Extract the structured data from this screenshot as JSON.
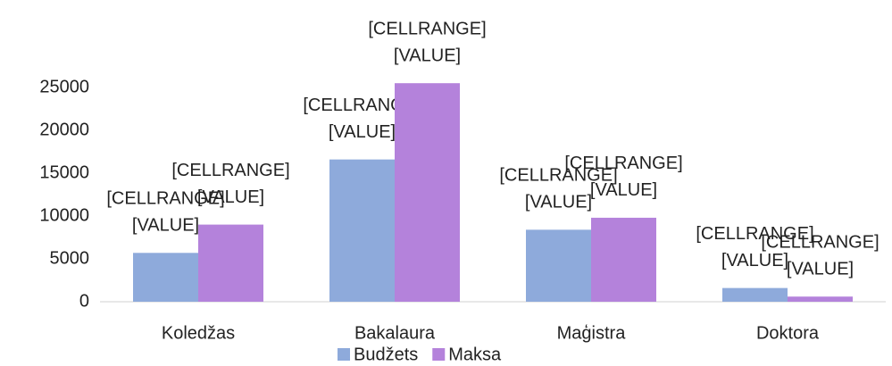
{
  "chart_data": {
    "type": "bar",
    "categories": [
      "Koledžas",
      "Bakalaura",
      "Maģistra",
      "Doktora"
    ],
    "series": [
      {
        "name": "Budžets",
        "color": "#8eaadb",
        "values": [
          5700,
          16600,
          8400,
          1600
        ],
        "value_labels": [
          [
            "[CELLRANGE]",
            "[VALUE]"
          ],
          [
            "[CELLRANGE]",
            "[VALUE]"
          ],
          [
            "[CELLRANGE]",
            "[VALUE]"
          ],
          [
            "[CELLRANGE]",
            "[VALUE]"
          ]
        ]
      },
      {
        "name": "Maksa",
        "color": "#b482db",
        "values": [
          9000,
          25500,
          9800,
          600
        ],
        "value_labels": [
          [
            "[CELLRANGE]",
            "[VALUE]"
          ],
          [
            "[CELLRANGE]",
            "[VALUE]"
          ],
          [
            "[CELLRANGE]",
            "[VALUE]"
          ],
          [
            "[CELLRANGE]",
            "[VALUE]"
          ]
        ]
      }
    ],
    "ylim": [
      0,
      30000
    ],
    "yticks": [
      0,
      5000,
      10000,
      15000,
      20000,
      25000
    ],
    "grid": false,
    "legend": "bottom"
  }
}
